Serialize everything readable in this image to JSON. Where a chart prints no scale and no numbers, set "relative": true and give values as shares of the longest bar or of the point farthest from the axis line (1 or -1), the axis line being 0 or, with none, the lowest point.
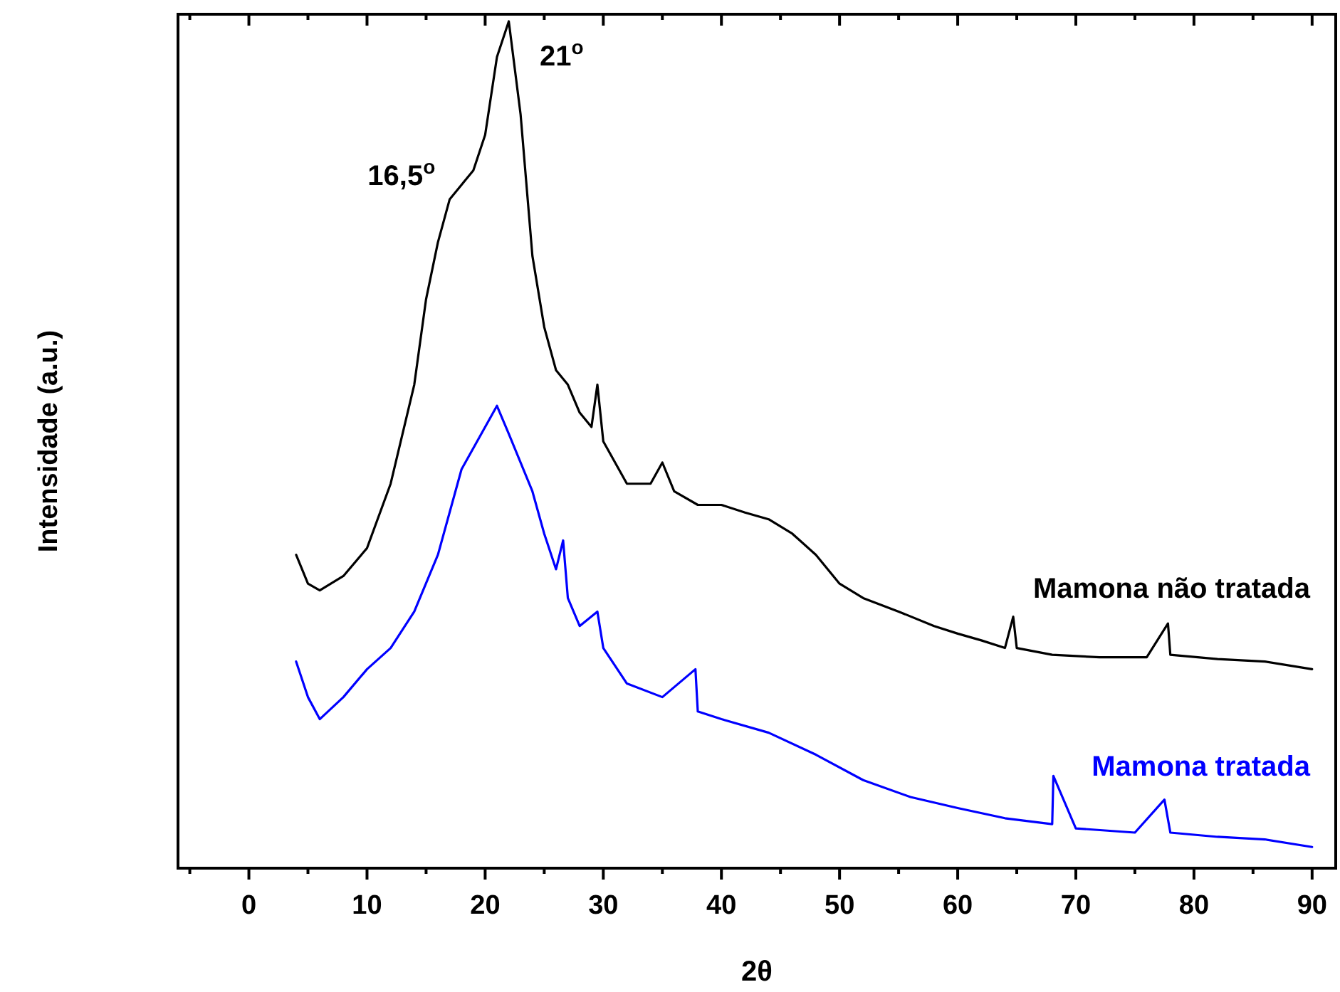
{
  "chart_data": {
    "type": "line",
    "relative": true,
    "xlabel": "2θ",
    "ylabel": "Intensidade (a.u.)",
    "xlim": [
      -6,
      92
    ],
    "xticks": [
      0,
      10,
      20,
      30,
      40,
      50,
      60,
      70,
      80,
      90
    ],
    "legend": false,
    "grid": false,
    "annotations": [
      {
        "text": "16,5$^{o}$",
        "x": 16.5,
        "y": 0.79
      },
      {
        "text": "21$^{o}$",
        "x": 21,
        "y": 0.958
      }
    ],
    "series": [
      {
        "name": "Mamona não tratada",
        "color": "#000000",
        "x": [
          4,
          5,
          6,
          8,
          10,
          12,
          14,
          15,
          16,
          17,
          18,
          19,
          20,
          21,
          22,
          23,
          24,
          25,
          26,
          27,
          28,
          29,
          29.5,
          30,
          32,
          34,
          35,
          36,
          38,
          40,
          42,
          44,
          46,
          48,
          50,
          52,
          55,
          58,
          60,
          62,
          64,
          64.7,
          65,
          68,
          72,
          76,
          77.8,
          78,
          82,
          86,
          90
        ],
        "values": [
          0.37,
          0.336,
          0.328,
          0.345,
          0.378,
          0.454,
          0.571,
          0.672,
          0.739,
          0.79,
          0.807,
          0.824,
          0.866,
          0.958,
          1.0,
          0.89,
          0.723,
          0.639,
          0.588,
          0.571,
          0.538,
          0.521,
          0.571,
          0.504,
          0.454,
          0.454,
          0.479,
          0.445,
          0.429,
          0.429,
          0.42,
          0.412,
          0.395,
          0.37,
          0.336,
          0.319,
          0.303,
          0.286,
          0.277,
          0.269,
          0.26,
          0.297,
          0.26,
          0.252,
          0.249,
          0.249,
          0.289,
          0.252,
          0.247,
          0.244,
          0.235
        ]
      },
      {
        "name": "Mamona tratada",
        "color": "#0000ff",
        "x": [
          4,
          5,
          6,
          8,
          10,
          12,
          14,
          16,
          18,
          20,
          21,
          22,
          24,
          25,
          26,
          26.6,
          27,
          28,
          29.5,
          30,
          32,
          35,
          37.8,
          38,
          40,
          44,
          48,
          52,
          56,
          60,
          64,
          68,
          68.1,
          70,
          75,
          77.5,
          78,
          82,
          86,
          90
        ],
        "values": [
          0.244,
          0.202,
          0.176,
          0.202,
          0.235,
          0.26,
          0.303,
          0.37,
          0.471,
          0.521,
          0.546,
          0.513,
          0.445,
          0.395,
          0.353,
          0.387,
          0.319,
          0.286,
          0.303,
          0.26,
          0.218,
          0.202,
          0.235,
          0.185,
          0.176,
          0.16,
          0.134,
          0.104,
          0.084,
          0.071,
          0.059,
          0.052,
          0.109,
          0.047,
          0.042,
          0.081,
          0.042,
          0.037,
          0.034,
          0.025
        ]
      }
    ]
  }
}
